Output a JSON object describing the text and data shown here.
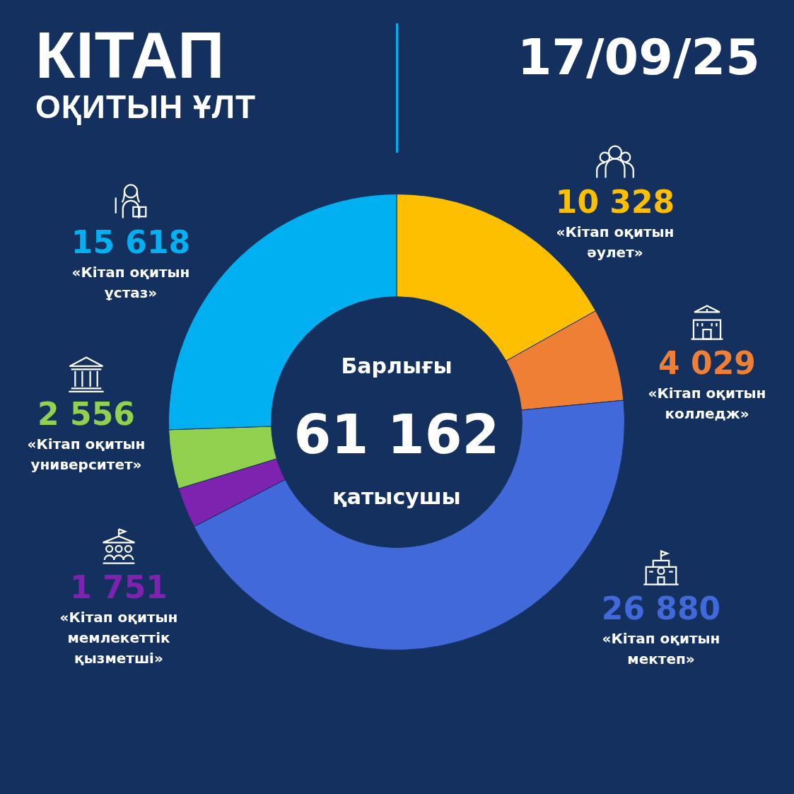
{
  "chart_data": {
    "type": "donut",
    "title": "КІТАП\nОҚИТЫН ҰЛТ",
    "subtitle": "17/09/25",
    "categories": [
      "«Кітап оқитын әулет»",
      "«Кітап оқитын колледж»",
      "«Кітап оқитын мектеп»",
      "«Кітап оқитын мемлекеттік қызметші»",
      "«Кітап оқитын университет»",
      "«Кітап оқитын ұстаз»"
    ],
    "values": [
      10328,
      4029,
      26880,
      1751,
      2556,
      15618
    ],
    "colors": [
      "#fdbf00",
      "#ef7f35",
      "#4169d9",
      "#7e22b0",
      "#92d050",
      "#00b0f0"
    ],
    "value_labels": [
      "10 328",
      "4 029",
      "26 880",
      "1 751",
      "2 556",
      "15 618"
    ],
    "annotations": [
      "Барлығы",
      "61 162",
      "қатысушы"
    ],
    "legend": false
  }
}
